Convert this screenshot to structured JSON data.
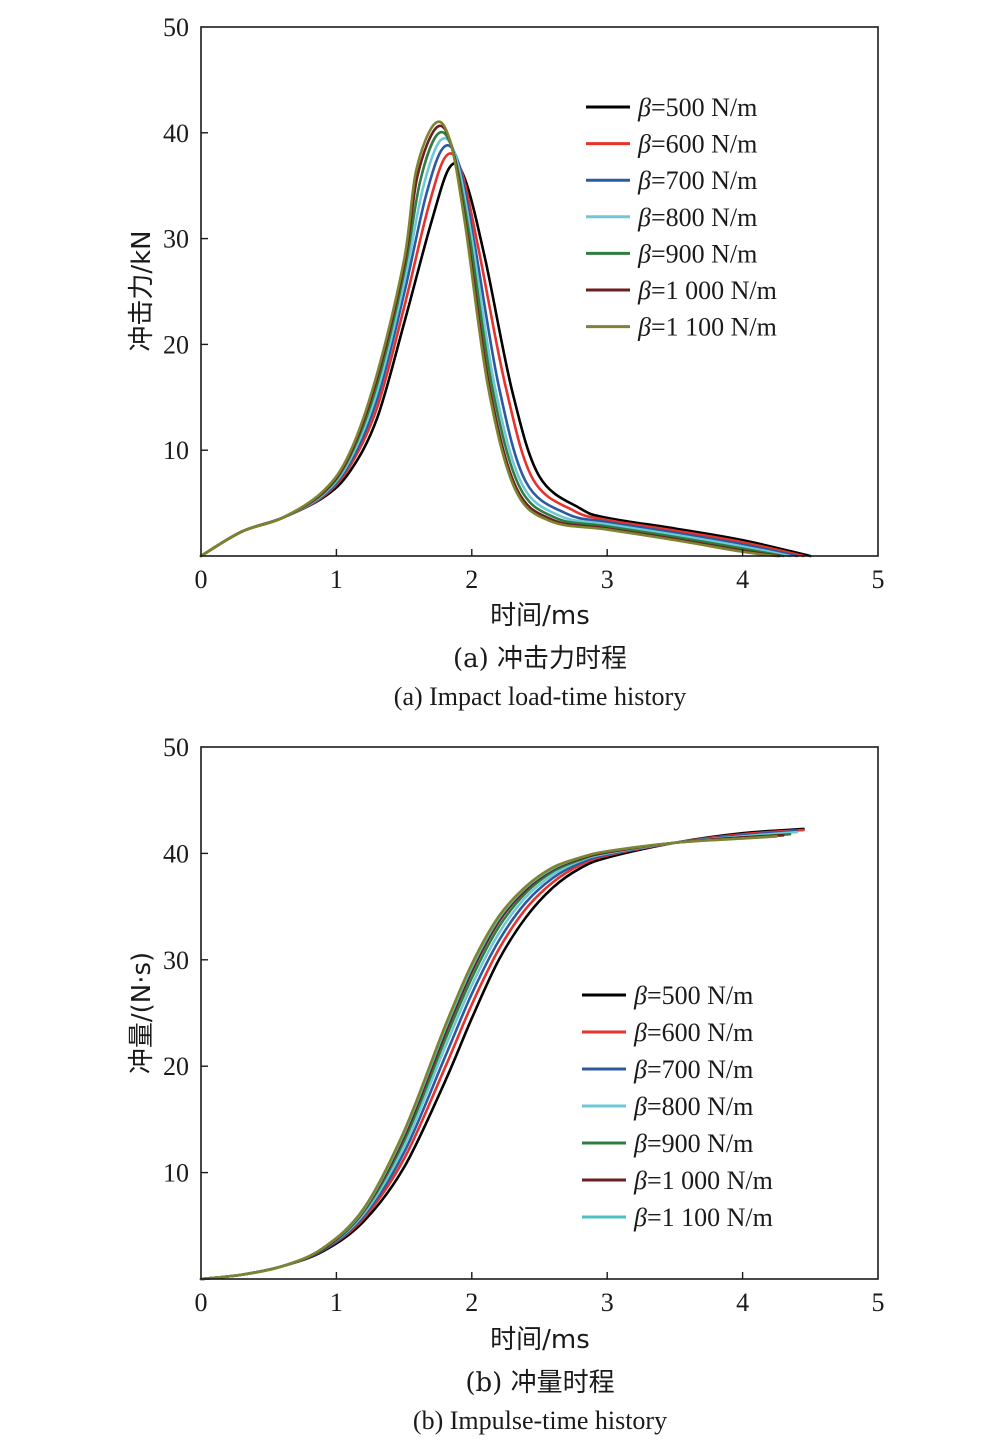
{
  "chart_data": [
    {
      "type": "line",
      "xlabel": "时间/ms",
      "ylabel": "冲击力/kN",
      "xlim": [
        0,
        5
      ],
      "ylim": [
        0,
        50
      ],
      "xticks": [
        "0",
        "1",
        "2",
        "3",
        "4",
        "5"
      ],
      "yticks": [
        "10",
        "20",
        "30",
        "40",
        "50"
      ],
      "caption_cn": "(a) 冲击力时程",
      "caption_en": "(a) Impact load-time history",
      "legend_position": "top-right",
      "grid": false,
      "series": [
        {
          "name": "β=500 N/m",
          "beta_symbol": "β",
          "beta_value": "=500 N/m",
          "color": "#000000",
          "x": [
            0,
            0.3,
            0.6,
            0.9,
            1.1,
            1.3,
            1.5,
            1.7,
            1.84,
            1.95,
            2.1,
            2.3,
            2.5,
            2.8,
            3.0,
            3.5,
            4.0,
            4.5
          ],
          "y": [
            0,
            2.3,
            3.6,
            5.5,
            8.0,
            13.0,
            22.0,
            31.5,
            36.8,
            35.6,
            28.0,
            15.5,
            7.5,
            4.5,
            3.6,
            2.6,
            1.5,
            0
          ]
        },
        {
          "name": "β=600 N/m",
          "beta_symbol": "β",
          "beta_value": "=600 N/m",
          "color": "#e8322c",
          "x": [
            0,
            0.3,
            0.6,
            0.9,
            1.1,
            1.3,
            1.5,
            1.68,
            1.81,
            1.92,
            2.05,
            2.25,
            2.45,
            2.75,
            3.0,
            3.5,
            4.0,
            4.45
          ],
          "y": [
            0,
            2.3,
            3.6,
            5.6,
            8.5,
            14.0,
            23.5,
            33.0,
            37.8,
            36.5,
            29.0,
            16.0,
            7.3,
            4.3,
            3.4,
            2.4,
            1.3,
            0
          ]
        },
        {
          "name": "β=700 N/m",
          "beta_symbol": "β",
          "beta_value": "=700 N/m",
          "color": "#2c5aa0",
          "x": [
            0,
            0.3,
            0.6,
            0.9,
            1.1,
            1.3,
            1.5,
            1.66,
            1.79,
            1.9,
            2.02,
            2.2,
            2.4,
            2.7,
            3.0,
            3.5,
            4.0,
            4.4
          ],
          "y": [
            0,
            2.3,
            3.6,
            5.7,
            8.8,
            14.8,
            24.8,
            34.0,
            38.6,
            37.2,
            29.5,
            16.0,
            7.0,
            4.0,
            3.2,
            2.2,
            1.1,
            0
          ]
        },
        {
          "name": "β=800 N/m",
          "beta_symbol": "β",
          "beta_value": "=800 N/m",
          "color": "#6ec8d8",
          "x": [
            0,
            0.3,
            0.6,
            0.9,
            1.1,
            1.3,
            1.5,
            1.64,
            1.77,
            1.88,
            2.0,
            2.17,
            2.37,
            2.65,
            3.0,
            3.5,
            4.0,
            4.35
          ],
          "y": [
            0,
            2.3,
            3.6,
            5.8,
            9.1,
            15.5,
            25.8,
            34.8,
            39.3,
            37.8,
            30.0,
            16.0,
            6.8,
            3.8,
            3.0,
            2.0,
            0.9,
            0
          ]
        },
        {
          "name": "β=900 N/m",
          "beta_symbol": "β",
          "beta_value": "=900 N/m",
          "color": "#2e7d42",
          "x": [
            0,
            0.3,
            0.6,
            0.9,
            1.1,
            1.3,
            1.5,
            1.62,
            1.75,
            1.86,
            1.98,
            2.15,
            2.35,
            2.62,
            3.0,
            3.5,
            4.0,
            4.3
          ],
          "y": [
            0,
            2.3,
            3.6,
            5.9,
            9.4,
            16.2,
            26.8,
            35.5,
            39.9,
            38.3,
            30.5,
            16.0,
            6.6,
            3.6,
            2.8,
            1.8,
            0.7,
            0
          ]
        },
        {
          "name": "β=1 000 N/m",
          "beta_symbol": "β",
          "beta_value": "=1 000 N/m",
          "color": "#6b1f1f",
          "x": [
            0,
            0.3,
            0.6,
            0.9,
            1.1,
            1.3,
            1.5,
            1.6,
            1.74,
            1.85,
            1.96,
            2.13,
            2.33,
            2.6,
            3.0,
            3.5,
            4.0,
            4.27
          ],
          "y": [
            0,
            2.3,
            3.6,
            6.0,
            9.6,
            16.8,
            27.5,
            36.0,
            40.5,
            38.8,
            31.0,
            16.0,
            6.4,
            3.4,
            2.6,
            1.6,
            0.5,
            0
          ]
        },
        {
          "name": "β=1 100 N/m",
          "beta_symbol": "β",
          "beta_value": "=1 100 N/m",
          "color": "#7f8330",
          "x": [
            0,
            0.3,
            0.6,
            0.9,
            1.1,
            1.3,
            1.5,
            1.59,
            1.73,
            1.84,
            1.95,
            2.12,
            2.32,
            2.58,
            3.0,
            3.5,
            4.0,
            4.25
          ],
          "y": [
            0,
            2.3,
            3.6,
            6.1,
            9.8,
            17.2,
            28.0,
            36.5,
            40.9,
            39.2,
            31.4,
            16.0,
            6.3,
            3.3,
            2.5,
            1.5,
            0.4,
            0
          ]
        }
      ]
    },
    {
      "type": "line",
      "xlabel": "时间/ms",
      "ylabel": "冲量/(N·s)",
      "xlim": [
        0,
        5
      ],
      "ylim": [
        0,
        50
      ],
      "xticks": [
        "0",
        "1",
        "2",
        "3",
        "4",
        "5"
      ],
      "yticks": [
        "10",
        "20",
        "30",
        "40",
        "50"
      ],
      "caption_cn": "(b) 冲量时程",
      "caption_en": "(b) Impulse-time history",
      "legend_position": "center-right",
      "grid": false,
      "series": [
        {
          "name": "β=500 N/m",
          "beta_symbol": "β",
          "beta_value": "=500 N/m",
          "color": "#000000",
          "x": [
            0,
            0.3,
            0.6,
            0.9,
            1.2,
            1.5,
            1.8,
            2.0,
            2.2,
            2.4,
            2.6,
            2.8,
            3.0,
            3.5,
            4.0,
            4.45
          ],
          "y": [
            0,
            0.4,
            1.2,
            2.6,
            5.4,
            10.5,
            18.5,
            24.5,
            30.0,
            34.0,
            36.8,
            38.6,
            39.6,
            41.0,
            41.9,
            42.3
          ]
        },
        {
          "name": "β=600 N/m",
          "beta_symbol": "β",
          "beta_value": "=600 N/m",
          "color": "#e8322c",
          "x": [
            0,
            0.3,
            0.6,
            0.9,
            1.2,
            1.5,
            1.8,
            2.0,
            2.2,
            2.4,
            2.6,
            2.8,
            3.0,
            3.5,
            4.0,
            4.45
          ],
          "y": [
            0,
            0.4,
            1.2,
            2.7,
            5.7,
            11.3,
            19.8,
            25.8,
            31.0,
            34.8,
            37.3,
            38.9,
            39.8,
            41.0,
            41.8,
            42.2
          ]
        },
        {
          "name": "β=700 N/m",
          "beta_symbol": "β",
          "beta_value": "=700 N/m",
          "color": "#2c5aa0",
          "x": [
            0,
            0.3,
            0.6,
            0.9,
            1.2,
            1.5,
            1.8,
            2.0,
            2.2,
            2.4,
            2.6,
            2.8,
            3.0,
            3.5,
            4.0,
            4.4
          ],
          "y": [
            0,
            0.4,
            1.2,
            2.7,
            5.9,
            11.9,
            20.8,
            26.8,
            31.8,
            35.4,
            37.7,
            39.1,
            39.9,
            41.0,
            41.7,
            42.1
          ]
        },
        {
          "name": "β=800 N/m",
          "beta_symbol": "β",
          "beta_value": "=800 N/m",
          "color": "#6ec8d8",
          "x": [
            0,
            0.3,
            0.6,
            0.9,
            1.2,
            1.5,
            1.8,
            2.0,
            2.2,
            2.4,
            2.6,
            2.8,
            3.0,
            3.5,
            4.0,
            4.4
          ],
          "y": [
            0,
            0.4,
            1.2,
            2.8,
            6.1,
            12.5,
            21.7,
            27.6,
            32.5,
            35.9,
            38.0,
            39.3,
            40.0,
            41.0,
            41.6,
            42.0
          ]
        },
        {
          "name": "β=900 N/m",
          "beta_symbol": "β",
          "beta_value": "=900 N/m",
          "color": "#2e7d42",
          "x": [
            0,
            0.3,
            0.6,
            0.9,
            1.2,
            1.5,
            1.8,
            2.0,
            2.2,
            2.4,
            2.6,
            2.8,
            3.0,
            3.5,
            4.0,
            4.35
          ],
          "y": [
            0,
            0.4,
            1.2,
            2.8,
            6.3,
            13.0,
            22.4,
            28.3,
            33.1,
            36.3,
            38.3,
            39.4,
            40.1,
            41.0,
            41.5,
            41.8
          ]
        },
        {
          "name": "β=1 000 N/m",
          "beta_symbol": "β",
          "beta_value": "=1 000 N/m",
          "color": "#6b1f1f",
          "x": [
            0,
            0.3,
            0.6,
            0.9,
            1.2,
            1.5,
            1.8,
            2.0,
            2.2,
            2.4,
            2.6,
            2.8,
            3.0,
            3.5,
            4.0,
            4.3
          ],
          "y": [
            0,
            0.4,
            1.2,
            2.8,
            6.4,
            13.4,
            23.0,
            28.9,
            33.6,
            36.6,
            38.5,
            39.5,
            40.1,
            41.0,
            41.5,
            41.7
          ]
        },
        {
          "name": "β=1 100 N/m",
          "beta_symbol": "β",
          "beta_value": "=1 100 N/m",
          "color": "#4fc0c0",
          "x": [
            0,
            0.3,
            0.6,
            0.9,
            1.2,
            1.5,
            1.8,
            2.0,
            2.2,
            2.4,
            2.6,
            2.8,
            3.0,
            3.5,
            4.0,
            4.25
          ],
          "y": [
            0,
            0.4,
            1.2,
            2.9,
            6.5,
            13.7,
            23.4,
            29.3,
            33.9,
            36.8,
            38.6,
            39.6,
            40.2,
            41.0,
            41.4,
            41.6
          ]
        },
        {
          "name": "",
          "color": "#7f8330",
          "x": [
            0,
            0.3,
            0.6,
            0.9,
            1.2,
            1.5,
            1.8,
            2.0,
            2.2,
            2.4,
            2.6,
            2.8,
            3.0,
            3.5,
            4.0,
            4.25
          ],
          "y": [
            0,
            0.4,
            1.2,
            2.9,
            6.6,
            13.9,
            23.7,
            29.6,
            34.1,
            36.9,
            38.7,
            39.6,
            40.2,
            41.0,
            41.4,
            41.6
          ]
        }
      ]
    }
  ]
}
